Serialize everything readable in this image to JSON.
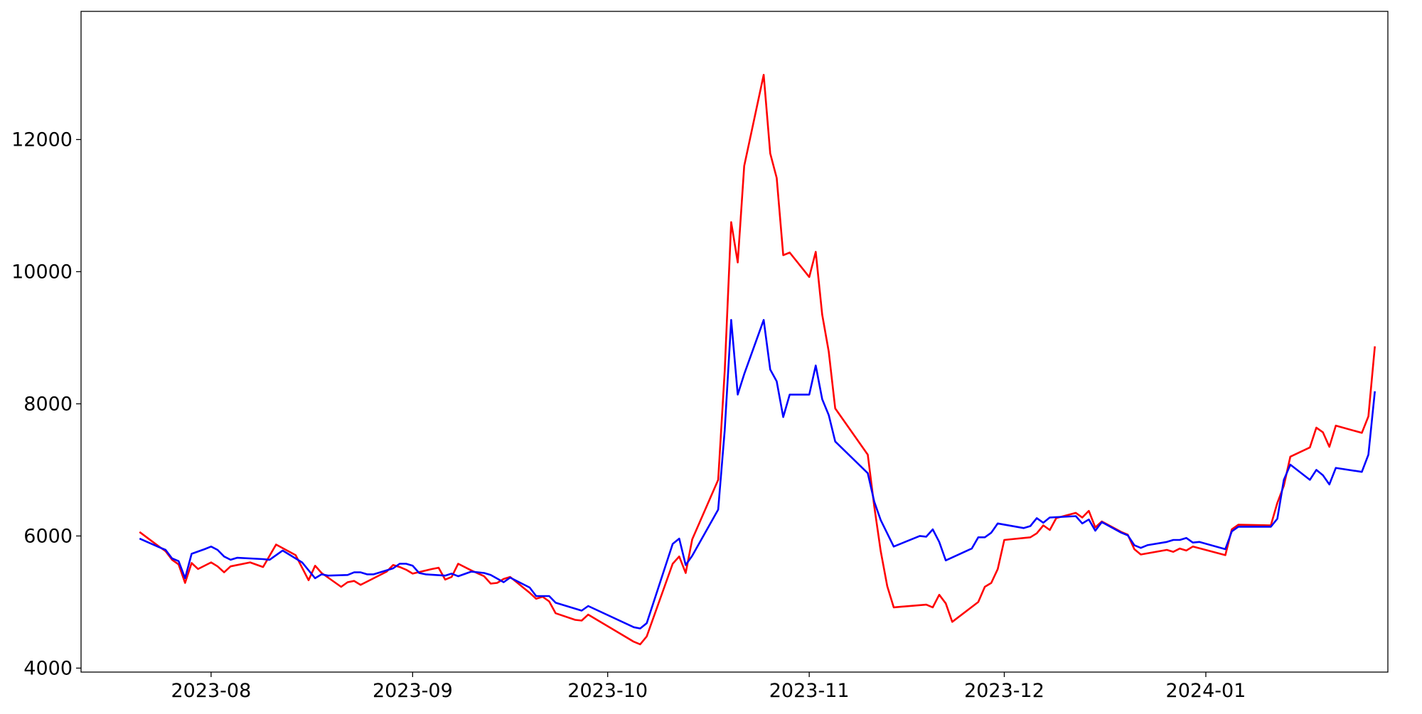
{
  "chart_data": {
    "type": "line",
    "title": "",
    "xlabel": "",
    "ylabel": "",
    "xlim": [
      "2023-07-12",
      "2024-01-29"
    ],
    "ylim": [
      3940,
      13940
    ],
    "grid": false,
    "legend": "none",
    "x_ticks": [
      {
        "date": "2023-08-01",
        "label": "2023-08"
      },
      {
        "date": "2023-09-01",
        "label": "2023-09"
      },
      {
        "date": "2023-10-01",
        "label": "2023-10"
      },
      {
        "date": "2023-11-01",
        "label": "2023-11"
      },
      {
        "date": "2023-12-01",
        "label": "2023-12"
      },
      {
        "date": "2024-01-01",
        "label": "2024-01"
      }
    ],
    "y_ticks": [
      {
        "value": 4000,
        "label": "4000"
      },
      {
        "value": 6000,
        "label": "6000"
      },
      {
        "value": 8000,
        "label": "8000"
      },
      {
        "value": 10000,
        "label": "10000"
      },
      {
        "value": 12000,
        "label": "12000"
      }
    ],
    "series": [
      {
        "color": "#ff0000",
        "points": [
          [
            "2023-07-21",
            6060
          ],
          [
            "2023-07-24",
            5840
          ],
          [
            "2023-07-25",
            5770
          ],
          [
            "2023-07-26",
            5640
          ],
          [
            "2023-07-27",
            5570
          ],
          [
            "2023-07-28",
            5290
          ],
          [
            "2023-07-29",
            5590
          ],
          [
            "2023-07-30",
            5500
          ],
          [
            "2023-08-01",
            5600
          ],
          [
            "2023-08-02",
            5540
          ],
          [
            "2023-08-03",
            5450
          ],
          [
            "2023-08-04",
            5540
          ],
          [
            "2023-08-07",
            5600
          ],
          [
            "2023-08-09",
            5530
          ],
          [
            "2023-08-11",
            5870
          ],
          [
            "2023-08-14",
            5710
          ],
          [
            "2023-08-16",
            5330
          ],
          [
            "2023-08-17",
            5550
          ],
          [
            "2023-08-18",
            5440
          ],
          [
            "2023-08-21",
            5230
          ],
          [
            "2023-08-22",
            5300
          ],
          [
            "2023-08-23",
            5320
          ],
          [
            "2023-08-24",
            5260
          ],
          [
            "2023-08-25",
            5310
          ],
          [
            "2023-08-28",
            5460
          ],
          [
            "2023-08-29",
            5560
          ],
          [
            "2023-08-30",
            5530
          ],
          [
            "2023-08-31",
            5490
          ],
          [
            "2023-09-01",
            5430
          ],
          [
            "2023-09-04",
            5500
          ],
          [
            "2023-09-05",
            5520
          ],
          [
            "2023-09-06",
            5340
          ],
          [
            "2023-09-07",
            5380
          ],
          [
            "2023-09-08",
            5580
          ],
          [
            "2023-09-10",
            5480
          ],
          [
            "2023-09-12",
            5390
          ],
          [
            "2023-09-13",
            5280
          ],
          [
            "2023-09-14",
            5290
          ],
          [
            "2023-09-15",
            5350
          ],
          [
            "2023-09-16",
            5380
          ],
          [
            "2023-09-17",
            5300
          ],
          [
            "2023-09-18",
            5220
          ],
          [
            "2023-09-19",
            5140
          ],
          [
            "2023-09-20",
            5050
          ],
          [
            "2023-09-21",
            5080
          ],
          [
            "2023-09-22",
            5010
          ],
          [
            "2023-09-23",
            4830
          ],
          [
            "2023-09-26",
            4730
          ],
          [
            "2023-09-27",
            4720
          ],
          [
            "2023-09-28",
            4810
          ],
          [
            "2023-10-05",
            4400
          ],
          [
            "2023-10-06",
            4360
          ],
          [
            "2023-10-07",
            4480
          ],
          [
            "2023-10-11",
            5580
          ],
          [
            "2023-10-12",
            5690
          ],
          [
            "2023-10-13",
            5440
          ],
          [
            "2023-10-14",
            5950
          ],
          [
            "2023-10-18",
            6850
          ],
          [
            "2023-10-19",
            8500
          ],
          [
            "2023-10-20",
            10750
          ],
          [
            "2023-10-21",
            10140
          ],
          [
            "2023-10-22",
            11600
          ],
          [
            "2023-10-25",
            12980
          ],
          [
            "2023-10-26",
            11790
          ],
          [
            "2023-10-27",
            11420
          ],
          [
            "2023-10-28",
            10250
          ],
          [
            "2023-10-29",
            10290
          ],
          [
            "2023-11-01",
            9920
          ],
          [
            "2023-11-02",
            10300
          ],
          [
            "2023-11-03",
            9350
          ],
          [
            "2023-11-04",
            8790
          ],
          [
            "2023-11-05",
            7930
          ],
          [
            "2023-11-10",
            7230
          ],
          [
            "2023-11-11",
            6450
          ],
          [
            "2023-11-12",
            5770
          ],
          [
            "2023-11-13",
            5240
          ],
          [
            "2023-11-14",
            4920
          ],
          [
            "2023-11-19",
            4960
          ],
          [
            "2023-11-20",
            4920
          ],
          [
            "2023-11-21",
            5110
          ],
          [
            "2023-11-22",
            4980
          ],
          [
            "2023-11-23",
            4700
          ],
          [
            "2023-11-27",
            5000
          ],
          [
            "2023-11-28",
            5230
          ],
          [
            "2023-11-29",
            5290
          ],
          [
            "2023-11-30",
            5500
          ],
          [
            "2023-12-01",
            5940
          ],
          [
            "2023-12-05",
            5980
          ],
          [
            "2023-12-06",
            6040
          ],
          [
            "2023-12-07",
            6160
          ],
          [
            "2023-12-08",
            6090
          ],
          [
            "2023-12-09",
            6270
          ],
          [
            "2023-12-12",
            6350
          ],
          [
            "2023-12-13",
            6280
          ],
          [
            "2023-12-14",
            6380
          ],
          [
            "2023-12-15",
            6130
          ],
          [
            "2023-12-16",
            6220
          ],
          [
            "2023-12-19",
            6060
          ],
          [
            "2023-12-20",
            6020
          ],
          [
            "2023-12-21",
            5800
          ],
          [
            "2023-12-22",
            5720
          ],
          [
            "2023-12-26",
            5790
          ],
          [
            "2023-12-27",
            5760
          ],
          [
            "2023-12-28",
            5810
          ],
          [
            "2023-12-29",
            5780
          ],
          [
            "2023-12-30",
            5840
          ],
          [
            "2024-01-04",
            5710
          ],
          [
            "2024-01-05",
            6100
          ],
          [
            "2024-01-06",
            6170
          ],
          [
            "2024-01-11",
            6160
          ],
          [
            "2024-01-12",
            6500
          ],
          [
            "2024-01-13",
            6760
          ],
          [
            "2024-01-14",
            7200
          ],
          [
            "2024-01-17",
            7340
          ],
          [
            "2024-01-18",
            7640
          ],
          [
            "2024-01-19",
            7570
          ],
          [
            "2024-01-20",
            7350
          ],
          [
            "2024-01-21",
            7670
          ],
          [
            "2024-01-25",
            7560
          ],
          [
            "2024-01-26",
            7810
          ],
          [
            "2024-01-27",
            8870
          ]
        ]
      },
      {
        "color": "#0000ff",
        "points": [
          [
            "2023-07-21",
            5960
          ],
          [
            "2023-07-24",
            5830
          ],
          [
            "2023-07-25",
            5790
          ],
          [
            "2023-07-26",
            5660
          ],
          [
            "2023-07-27",
            5620
          ],
          [
            "2023-07-28",
            5360
          ],
          [
            "2023-07-29",
            5730
          ],
          [
            "2023-07-31",
            5800
          ],
          [
            "2023-08-01",
            5840
          ],
          [
            "2023-08-02",
            5790
          ],
          [
            "2023-08-03",
            5690
          ],
          [
            "2023-08-04",
            5640
          ],
          [
            "2023-08-05",
            5670
          ],
          [
            "2023-08-09",
            5650
          ],
          [
            "2023-08-10",
            5640
          ],
          [
            "2023-08-12",
            5780
          ],
          [
            "2023-08-15",
            5600
          ],
          [
            "2023-08-17",
            5360
          ],
          [
            "2023-08-18",
            5420
          ],
          [
            "2023-08-19",
            5400
          ],
          [
            "2023-08-22",
            5410
          ],
          [
            "2023-08-23",
            5450
          ],
          [
            "2023-08-24",
            5450
          ],
          [
            "2023-08-25",
            5420
          ],
          [
            "2023-08-26",
            5420
          ],
          [
            "2023-08-29",
            5510
          ],
          [
            "2023-08-30",
            5580
          ],
          [
            "2023-08-31",
            5580
          ],
          [
            "2023-09-01",
            5550
          ],
          [
            "2023-09-02",
            5440
          ],
          [
            "2023-09-03",
            5420
          ],
          [
            "2023-09-06",
            5400
          ],
          [
            "2023-09-07",
            5430
          ],
          [
            "2023-09-08",
            5390
          ],
          [
            "2023-09-10",
            5460
          ],
          [
            "2023-09-12",
            5440
          ],
          [
            "2023-09-13",
            5410
          ],
          [
            "2023-09-15",
            5300
          ],
          [
            "2023-09-16",
            5370
          ],
          [
            "2023-09-19",
            5220
          ],
          [
            "2023-09-20",
            5090
          ],
          [
            "2023-09-22",
            5090
          ],
          [
            "2023-09-23",
            4990
          ],
          [
            "2023-09-27",
            4870
          ],
          [
            "2023-09-28",
            4940
          ],
          [
            "2023-10-05",
            4620
          ],
          [
            "2023-10-06",
            4600
          ],
          [
            "2023-10-07",
            4680
          ],
          [
            "2023-10-11",
            5880
          ],
          [
            "2023-10-12",
            5960
          ],
          [
            "2023-10-13",
            5560
          ],
          [
            "2023-10-14",
            5700
          ],
          [
            "2023-10-18",
            6400
          ],
          [
            "2023-10-19",
            7600
          ],
          [
            "2023-10-20",
            9270
          ],
          [
            "2023-10-21",
            8140
          ],
          [
            "2023-10-22",
            8450
          ],
          [
            "2023-10-25",
            9270
          ],
          [
            "2023-10-26",
            8520
          ],
          [
            "2023-10-27",
            8340
          ],
          [
            "2023-10-28",
            7800
          ],
          [
            "2023-10-29",
            8140
          ],
          [
            "2023-11-01",
            8140
          ],
          [
            "2023-11-02",
            8580
          ],
          [
            "2023-11-03",
            8070
          ],
          [
            "2023-11-04",
            7830
          ],
          [
            "2023-11-05",
            7430
          ],
          [
            "2023-11-10",
            6950
          ],
          [
            "2023-11-11",
            6520
          ],
          [
            "2023-11-12",
            6240
          ],
          [
            "2023-11-14",
            5840
          ],
          [
            "2023-11-18",
            6000
          ],
          [
            "2023-11-19",
            5990
          ],
          [
            "2023-11-20",
            6100
          ],
          [
            "2023-11-21",
            5910
          ],
          [
            "2023-11-22",
            5630
          ],
          [
            "2023-11-26",
            5810
          ],
          [
            "2023-11-27",
            5980
          ],
          [
            "2023-11-28",
            5980
          ],
          [
            "2023-11-29",
            6050
          ],
          [
            "2023-11-30",
            6190
          ],
          [
            "2023-12-04",
            6120
          ],
          [
            "2023-12-05",
            6150
          ],
          [
            "2023-12-06",
            6270
          ],
          [
            "2023-12-07",
            6200
          ],
          [
            "2023-12-08",
            6280
          ],
          [
            "2023-12-12",
            6300
          ],
          [
            "2023-12-13",
            6190
          ],
          [
            "2023-12-14",
            6250
          ],
          [
            "2023-12-15",
            6080
          ],
          [
            "2023-12-16",
            6210
          ],
          [
            "2023-12-19",
            6050
          ],
          [
            "2023-12-20",
            6010
          ],
          [
            "2023-12-21",
            5860
          ],
          [
            "2023-12-22",
            5820
          ],
          [
            "2023-12-23",
            5860
          ],
          [
            "2023-12-26",
            5910
          ],
          [
            "2023-12-27",
            5940
          ],
          [
            "2023-12-28",
            5940
          ],
          [
            "2023-12-29",
            5970
          ],
          [
            "2023-12-30",
            5900
          ],
          [
            "2023-12-31",
            5910
          ],
          [
            "2024-01-04",
            5800
          ],
          [
            "2024-01-05",
            6070
          ],
          [
            "2024-01-06",
            6140
          ],
          [
            "2024-01-11",
            6140
          ],
          [
            "2024-01-12",
            6260
          ],
          [
            "2024-01-13",
            6850
          ],
          [
            "2024-01-14",
            7080
          ],
          [
            "2024-01-17",
            6850
          ],
          [
            "2024-01-18",
            7000
          ],
          [
            "2024-01-19",
            6920
          ],
          [
            "2024-01-20",
            6780
          ],
          [
            "2024-01-21",
            7030
          ],
          [
            "2024-01-25",
            6970
          ],
          [
            "2024-01-26",
            7230
          ],
          [
            "2024-01-27",
            8190
          ]
        ]
      }
    ]
  }
}
